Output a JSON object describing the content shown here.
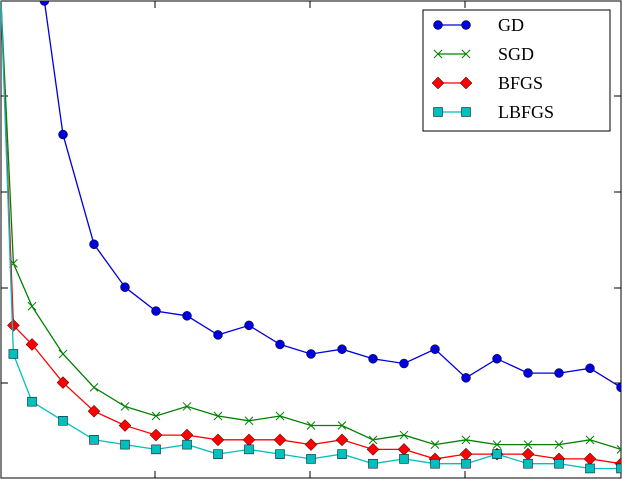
{
  "chart_data": {
    "type": "line",
    "title": "",
    "xlabel": "",
    "ylabel": "",
    "xlim": [
      0,
      100
    ],
    "ylim": [
      0,
      1
    ],
    "grid": false,
    "legend_position": "top-right",
    "series": [
      {
        "name": "GD",
        "color": "#0000dd",
        "marker": "circle",
        "x": [
          7,
          10,
          15,
          20,
          25,
          30,
          35,
          40,
          45,
          50,
          55,
          60,
          65,
          70,
          75,
          80,
          85,
          90,
          95,
          100
        ],
        "y": [
          1.0,
          0.72,
          0.49,
          0.4,
          0.35,
          0.34,
          0.3,
          0.32,
          0.28,
          0.26,
          0.27,
          0.25,
          0.24,
          0.27,
          0.21,
          0.25,
          0.22,
          0.22,
          0.23,
          0.19
        ]
      },
      {
        "name": "SGD",
        "color": "#008000",
        "marker": "x",
        "x": [
          0,
          2,
          5,
          10,
          15,
          20,
          25,
          30,
          35,
          40,
          45,
          50,
          55,
          60,
          65,
          70,
          75,
          80,
          85,
          90,
          95,
          100
        ],
        "y": [
          1.0,
          0.45,
          0.36,
          0.26,
          0.19,
          0.15,
          0.13,
          0.15,
          0.13,
          0.12,
          0.13,
          0.11,
          0.11,
          0.08,
          0.09,
          0.07,
          0.08,
          0.07,
          0.07,
          0.07,
          0.08,
          0.06
        ]
      },
      {
        "name": "BFGS",
        "color": "#ff0000",
        "marker": "diamond",
        "x": [
          0,
          2,
          5,
          10,
          15,
          20,
          25,
          30,
          35,
          40,
          45,
          50,
          55,
          60,
          65,
          70,
          75,
          80,
          85,
          90,
          95,
          100
        ],
        "y": [
          1.0,
          0.32,
          0.28,
          0.2,
          0.14,
          0.11,
          0.09,
          0.09,
          0.08,
          0.08,
          0.08,
          0.07,
          0.08,
          0.06,
          0.06,
          0.04,
          0.05,
          0.05,
          0.05,
          0.04,
          0.04,
          0.03
        ]
      },
      {
        "name": "LBFGS",
        "color": "#00bfbf",
        "marker": "square",
        "x": [
          0,
          2,
          5,
          10,
          15,
          20,
          25,
          30,
          35,
          40,
          45,
          50,
          55,
          60,
          65,
          70,
          75,
          80,
          85,
          90,
          95,
          100
        ],
        "y": [
          1.0,
          0.26,
          0.16,
          0.12,
          0.08,
          0.07,
          0.06,
          0.07,
          0.05,
          0.06,
          0.05,
          0.04,
          0.05,
          0.03,
          0.04,
          0.03,
          0.03,
          0.05,
          0.03,
          0.03,
          0.02,
          0.02
        ]
      }
    ]
  }
}
